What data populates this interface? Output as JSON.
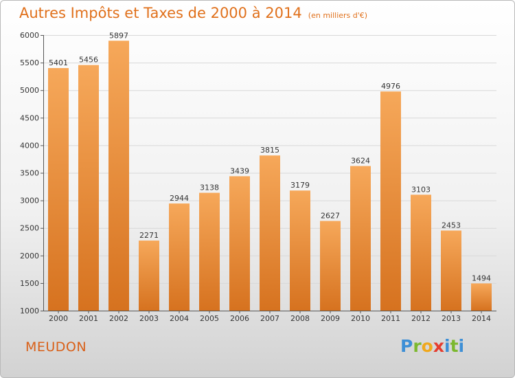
{
  "title": "Autres Impôts et Taxes de 2000 à 2014",
  "subtitle": "(en milliers d'€)",
  "city": "MEUDON",
  "logo": {
    "letters": [
      {
        "ch": "P",
        "color": "#3d8fd6"
      },
      {
        "ch": "r",
        "color": "#7cb82f"
      },
      {
        "ch": "o",
        "color": "#f0a81c"
      },
      {
        "ch": "x",
        "color": "#e53c2e"
      },
      {
        "ch": "i",
        "color": "#3d8fd6"
      },
      {
        "ch": "t",
        "color": "#7cb82f"
      },
      {
        "ch": "i",
        "color": "#3d8fd6"
      }
    ]
  },
  "colors": {
    "bar_top": "#f6a85a",
    "bar_bottom": "#d6721f",
    "accent": "#e0701b"
  },
  "chart_data": {
    "type": "bar",
    "categories": [
      "2000",
      "2001",
      "2002",
      "2003",
      "2004",
      "2005",
      "2006",
      "2007",
      "2008",
      "2009",
      "2010",
      "2011",
      "2012",
      "2013",
      "2014"
    ],
    "values": [
      5401,
      5456,
      5897,
      2271,
      2944,
      3138,
      3439,
      3815,
      3179,
      2627,
      3624,
      4976,
      3103,
      2453,
      1494
    ],
    "ylim": [
      1000,
      6000
    ],
    "yticks": [
      1000,
      1500,
      2000,
      2500,
      3000,
      3500,
      4000,
      4500,
      5000,
      5500,
      6000
    ],
    "grid": true,
    "data_labels": true
  }
}
